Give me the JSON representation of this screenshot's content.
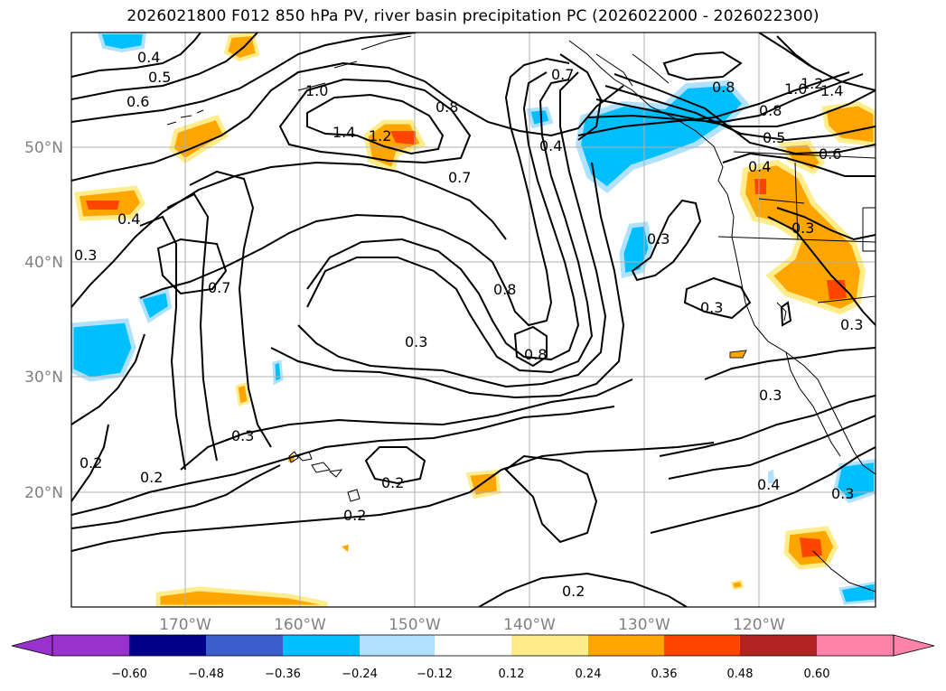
{
  "title": "2026021800 F012 850 hPa PV, river basin precipitation PC (2026022000 - 2026022300)",
  "axes": {
    "lat_labels": [
      "50°N",
      "40°N",
      "30°N",
      "20°N"
    ],
    "lon_labels": [
      "170°W",
      "160°W",
      "150°W",
      "140°W",
      "130°W",
      "120°W"
    ]
  },
  "colorbar": {
    "ticks": [
      "−0.60",
      "−0.48",
      "−0.36",
      "−0.24",
      "−0.12",
      "0.12",
      "0.24",
      "0.36",
      "0.48",
      "0.60"
    ],
    "colors": {
      "under": "#9932cc",
      "c1": "#00008b",
      "c2": "#3a5fcd",
      "c3": "#00bfff",
      "c4": "#b0e2ff",
      "c5": "#ffffff",
      "c6": "#ffec8b",
      "c7": "#ffa500",
      "c8": "#ff4500",
      "c9": "#b22222",
      "over": "#ff82ab"
    }
  },
  "contour_labels": [
    "0.4",
    "0.5",
    "0.6",
    "1.0",
    "1.4",
    "1.2",
    "0.8",
    "0.7",
    "0.7",
    "0.4",
    "0.8",
    "1.0",
    "1.2",
    "1.4",
    "0.8",
    "0.5",
    "0.6",
    "0.4",
    "0.4",
    "0.3",
    "0.3",
    "0.7",
    "0.3",
    "0.8",
    "0.8",
    "0.3",
    "0.3",
    "0.3",
    "0.3",
    "0.2",
    "0.2",
    "0.2",
    "0.2",
    "0.4",
    "0.3",
    "0.3",
    "0.2"
  ]
}
